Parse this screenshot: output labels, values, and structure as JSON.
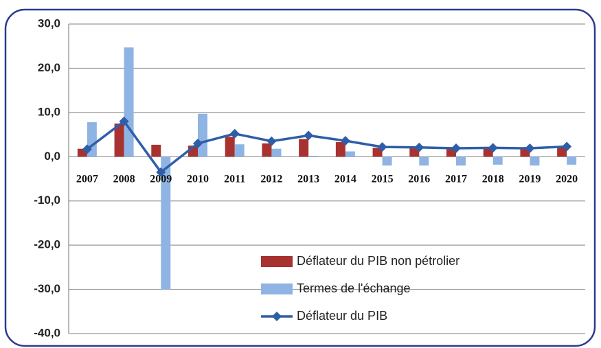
{
  "chart_data": {
    "type": "bar-line",
    "categories": [
      "2007",
      "2008",
      "2009",
      "2010",
      "2011",
      "2012",
      "2013",
      "2014",
      "2015",
      "2016",
      "2017",
      "2018",
      "2019",
      "2020"
    ],
    "series": [
      {
        "name": "Déflateur du PIB non pétrolier",
        "type": "bar",
        "color": "#a8322f",
        "values": [
          1.8,
          7.5,
          2.7,
          2.5,
          4.5,
          3.0,
          4.0,
          3.3,
          2.0,
          2.0,
          1.8,
          2.0,
          1.8,
          2.0
        ]
      },
      {
        "name": "Termes de l'échange",
        "type": "bar",
        "color": "#8fb4e3",
        "values": [
          7.8,
          24.7,
          -30.0,
          9.7,
          2.8,
          1.8,
          0.2,
          1.2,
          -2.0,
          -2.0,
          -2.0,
          -1.8,
          -2.0,
          -1.8
        ]
      },
      {
        "name": "Déflateur du PIB",
        "type": "line",
        "color": "#2f5ea8",
        "values": [
          1.7,
          8.0,
          -3.5,
          3.0,
          5.2,
          3.5,
          4.8,
          3.6,
          2.2,
          2.1,
          1.9,
          2.0,
          1.9,
          2.3
        ]
      }
    ],
    "ylim": [
      -40,
      30
    ],
    "yticks": [
      {
        "value": 30,
        "label": "30,0"
      },
      {
        "value": 20,
        "label": "20,0"
      },
      {
        "value": 10,
        "label": "10,0"
      },
      {
        "value": 0,
        "label": "0,0"
      },
      {
        "value": -10,
        "label": "-10,0"
      },
      {
        "value": -20,
        "label": "-20,0"
      },
      {
        "value": -30,
        "label": "-30,0"
      },
      {
        "value": -40,
        "label": "-40,0"
      }
    ],
    "grid": true,
    "legend": "lower right"
  }
}
